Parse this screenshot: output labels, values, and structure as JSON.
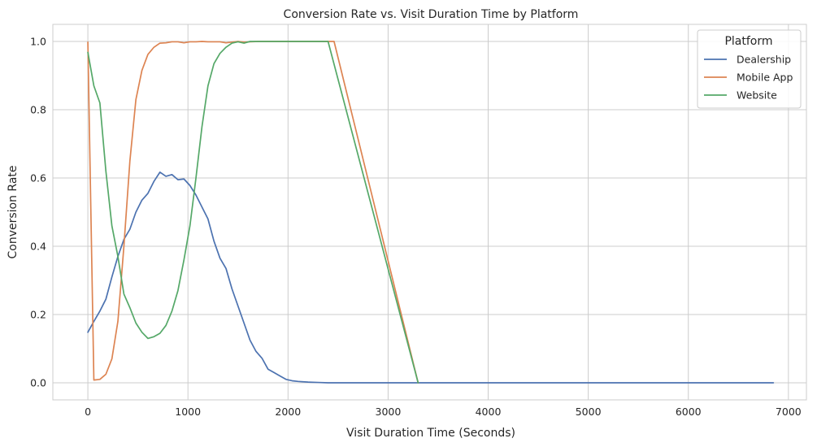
{
  "chart_data": {
    "type": "line",
    "title": "Conversion Rate vs. Visit Duration Time by Platform",
    "xlabel": "Visit Duration Time (Seconds)",
    "ylabel": "Conversion Rate",
    "xlim": [
      -350,
      7180
    ],
    "ylim": [
      -0.05,
      1.05
    ],
    "xticks": [
      0,
      1000,
      2000,
      3000,
      4000,
      5000,
      6000,
      7000
    ],
    "xtick_labels": [
      "0",
      "1000",
      "2000",
      "3000",
      "4000",
      "5000",
      "6000",
      "7000"
    ],
    "yticks": [
      0.0,
      0.2,
      0.4,
      0.6,
      0.8,
      1.0
    ],
    "ytick_labels": [
      "0.0",
      "0.2",
      "0.4",
      "0.6",
      "0.8",
      "1.0"
    ],
    "grid": true,
    "legend_title": "Platform",
    "legend_position": "top-right",
    "series": [
      {
        "name": "Dealership",
        "color": "#4c72b0",
        "x": [
          0,
          60,
          120,
          180,
          240,
          300,
          360,
          420,
          480,
          540,
          600,
          660,
          720,
          780,
          840,
          900,
          960,
          1020,
          1080,
          1140,
          1200,
          1260,
          1320,
          1380,
          1440,
          1500,
          1560,
          1620,
          1680,
          1740,
          1800,
          1860,
          1920,
          1980,
          2040,
          2100,
          2200,
          2300,
          2400,
          3000,
          4000,
          5000,
          6000,
          6850
        ],
        "y": [
          0.148,
          0.18,
          0.21,
          0.245,
          0.31,
          0.37,
          0.42,
          0.45,
          0.5,
          0.535,
          0.555,
          0.59,
          0.617,
          0.605,
          0.61,
          0.595,
          0.597,
          0.578,
          0.55,
          0.515,
          0.48,
          0.415,
          0.365,
          0.335,
          0.275,
          0.225,
          0.175,
          0.125,
          0.092,
          0.072,
          0.04,
          0.03,
          0.02,
          0.01,
          0.006,
          0.004,
          0.002,
          0.001,
          0.0,
          0.0,
          0.0,
          0.0,
          0.0,
          0.0
        ]
      },
      {
        "name": "Mobile App",
        "color": "#dd8452",
        "x": [
          0,
          60,
          120,
          180,
          240,
          300,
          360,
          420,
          480,
          540,
          600,
          660,
          720,
          780,
          840,
          900,
          960,
          1020,
          1080,
          1140,
          1200,
          1260,
          1320,
          1380,
          1440,
          1500,
          1560,
          1620,
          1700,
          1800,
          1900,
          2000,
          2100,
          2200,
          2300,
          2400,
          2460,
          3300
        ],
        "y": [
          0.998,
          0.008,
          0.01,
          0.025,
          0.07,
          0.18,
          0.4,
          0.65,
          0.83,
          0.915,
          0.962,
          0.983,
          0.995,
          0.996,
          0.999,
          0.999,
          0.996,
          0.999,
          0.999,
          1.0,
          0.999,
          0.999,
          0.999,
          0.996,
          0.998,
          1.0,
          0.998,
          0.999,
          1.0,
          1.0,
          1.0,
          1.0,
          1.0,
          1.0,
          1.0,
          1.0,
          1.0,
          0.0
        ]
      },
      {
        "name": "Website",
        "color": "#55a868",
        "x": [
          0,
          60,
          120,
          180,
          240,
          300,
          360,
          420,
          480,
          540,
          600,
          660,
          720,
          780,
          840,
          900,
          960,
          1020,
          1080,
          1140,
          1200,
          1260,
          1320,
          1380,
          1440,
          1500,
          1560,
          1620,
          1700,
          1800,
          1900,
          2000,
          2100,
          2200,
          2300,
          2400,
          3300
        ],
        "y": [
          0.968,
          0.87,
          0.82,
          0.62,
          0.46,
          0.37,
          0.26,
          0.22,
          0.175,
          0.148,
          0.13,
          0.135,
          0.145,
          0.168,
          0.21,
          0.27,
          0.36,
          0.46,
          0.6,
          0.75,
          0.87,
          0.935,
          0.965,
          0.983,
          0.995,
          0.999,
          0.995,
          1.0,
          1.0,
          1.0,
          1.0,
          1.0,
          1.0,
          1.0,
          1.0,
          1.0,
          0.0
        ]
      }
    ]
  }
}
